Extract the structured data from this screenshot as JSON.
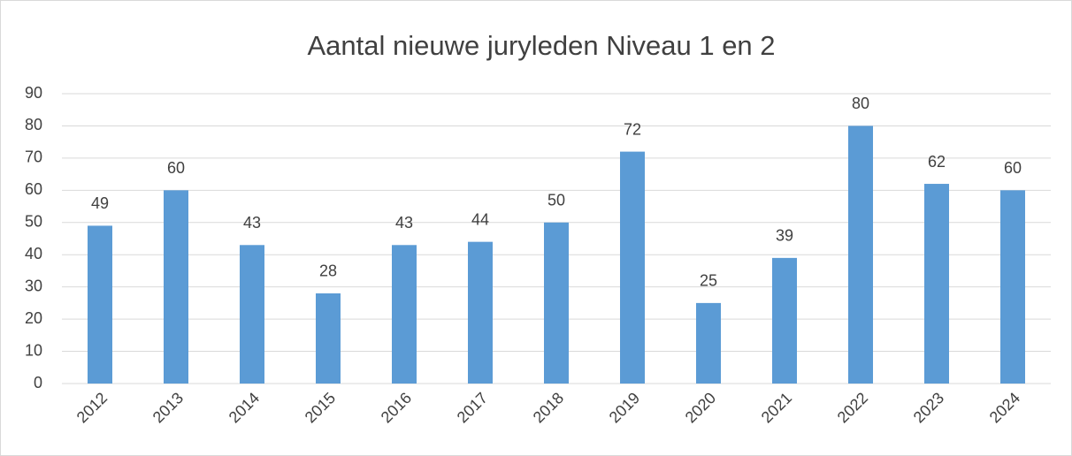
{
  "chart_data": {
    "type": "bar",
    "title": "Aantal nieuwe juryleden Niveau 1 en 2",
    "categories": [
      "2012",
      "2013",
      "2014",
      "2015",
      "2016",
      "2017",
      "2018",
      "2019",
      "2020",
      "2021",
      "2022",
      "2023",
      "2024"
    ],
    "values": [
      49,
      60,
      43,
      28,
      43,
      44,
      50,
      72,
      25,
      39,
      80,
      62,
      60
    ],
    "color": "#5b9bd5",
    "ylim": [
      0,
      90
    ],
    "yticks": [
      0,
      10,
      20,
      30,
      40,
      50,
      60,
      70,
      80,
      90
    ],
    "grid": true,
    "data_labels": true
  }
}
